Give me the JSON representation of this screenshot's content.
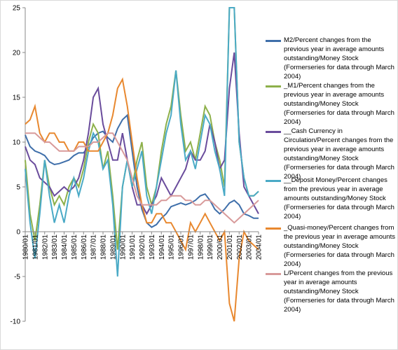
{
  "chart_data": {
    "type": "line",
    "categories": [
      "1980/01",
      null,
      "1981/01",
      null,
      "1982/01",
      null,
      "1983/01",
      null,
      "1984/01",
      null,
      "1985/01",
      null,
      "1986/01",
      null,
      "1987/01",
      null,
      "1988/01",
      null,
      "1989/01",
      null,
      "1990/01",
      null,
      "1991/01",
      null,
      "1992/01",
      null,
      "1993/01",
      null,
      "1994/01",
      null,
      "1995/01",
      null,
      "1996/01",
      null,
      "1997/01",
      null,
      "1998/01",
      null,
      "1999/01",
      null,
      "2000/01",
      null,
      "2001/01",
      null,
      "2002/01",
      null,
      "2003/01",
      null,
      "2004/01"
    ],
    "ylim": [
      -10,
      25
    ],
    "yticks": [
      -10,
      -5,
      0,
      5,
      10,
      15,
      20,
      25
    ],
    "grid": false,
    "series": [
      {
        "name": "M2/Percent changes from the previous year in average amounts outstanding/Money Stock (Formerseries for data through March 2004)",
        "color": "#3f6faa",
        "values": [
          10.8,
          9.5,
          9.0,
          8.8,
          8.5,
          7.8,
          7.5,
          7.6,
          7.8,
          8.0,
          8.5,
          8.8,
          8.8,
          9.5,
          10.5,
          11.0,
          11.2,
          10.5,
          10.0,
          11.5,
          12.5,
          13.0,
          9.0,
          5.0,
          2.5,
          1.0,
          0.5,
          0.8,
          1.5,
          2.0,
          2.8,
          3.0,
          3.2,
          3.0,
          3.2,
          3.5,
          4.0,
          4.2,
          3.5,
          2.5,
          2.0,
          2.5,
          3.2,
          3.5,
          3.0,
          2.0,
          1.8,
          1.5,
          1.5
        ]
      },
      {
        "name": "_M1/Percent changes from the previous year in average amounts outstanding/Money Stock (Formerseries for data through March 2004)",
        "color": "#8db04a",
        "values": [
          8,
          2,
          -1,
          3,
          8,
          5,
          3,
          4,
          3,
          5,
          6,
          5,
          7,
          10,
          12,
          11,
          7,
          9,
          4,
          -2,
          5,
          8,
          5,
          8,
          10,
          5,
          3,
          5,
          9,
          12,
          14,
          18,
          13,
          9,
          10,
          8,
          11,
          14,
          13,
          10,
          8,
          5,
          25,
          25,
          10,
          6,
          4,
          4,
          4.5
        ]
      },
      {
        "name": "__Cash Currency in Circulation/Percent changes from the previous year in average amounts  outstanding/Money Stock (Formerseries for data  through March 2004)",
        "color": "#6a4c9c",
        "values": [
          9.5,
          8,
          7.5,
          6,
          5.5,
          5,
          4,
          4.5,
          5,
          4.5,
          5,
          6,
          8,
          11,
          15,
          16,
          12,
          10,
          8,
          8,
          11,
          8,
          5,
          3,
          3,
          2,
          3,
          4,
          6,
          5,
          4,
          5,
          6,
          7,
          9,
          8,
          8,
          9,
          12,
          10,
          7,
          8,
          16,
          20,
          11,
          5,
          4,
          3,
          2
        ]
      },
      {
        "name": "__Deposit Money/Percent changes from the previous year in average amounts outstanding/Money Stock (Formerseries for data through March 2004)",
        "color": "#4aaac6",
        "values": [
          7,
          1,
          -3,
          2,
          8,
          4,
          1,
          3,
          1,
          4,
          6,
          4,
          6,
          9,
          11,
          10,
          7,
          8,
          3,
          -5,
          5,
          8,
          5,
          7,
          9,
          4,
          2,
          5,
          8,
          11,
          13,
          18,
          12,
          8,
          9,
          7,
          10,
          13,
          12,
          9,
          7,
          4,
          25,
          25,
          10,
          6,
          4,
          4,
          4.5
        ]
      },
      {
        "name": "_Quasi-money/Percent changes from the previous year in average amounts outstanding/Money Stock (Formerseries for data through March 2004)",
        "color": "#e8882f",
        "values": [
          12,
          12.5,
          14,
          11,
          10,
          11,
          11,
          10,
          10,
          9,
          9,
          10,
          10,
          9,
          9,
          9,
          10,
          11,
          13,
          16,
          17,
          14,
          10,
          6,
          3,
          1,
          1,
          2,
          2,
          1,
          1,
          0,
          -1,
          -2,
          1,
          0,
          1,
          2,
          1,
          0,
          -1,
          0,
          -8,
          -10,
          -3,
          0,
          -1,
          -1.5,
          -2
        ]
      },
      {
        "name": "L/Percent changes from the previous year in average amounts outstanding/Money Stock (Formerseries for data through March 2004)",
        "color": "#d89a9a",
        "values": [
          11,
          11,
          11,
          10.5,
          10,
          10,
          9.5,
          9,
          9,
          9,
          9,
          9.5,
          9.5,
          9.5,
          10,
          10,
          10.5,
          11,
          11,
          10,
          9,
          8,
          6,
          4,
          3,
          3,
          3,
          3,
          3.5,
          3.5,
          4,
          4,
          4,
          3.5,
          3.5,
          3,
          3,
          3.5,
          3.5,
          3,
          2.5,
          2,
          1.5,
          1,
          1.5,
          2,
          2.5,
          3,
          3.5
        ]
      }
    ]
  }
}
